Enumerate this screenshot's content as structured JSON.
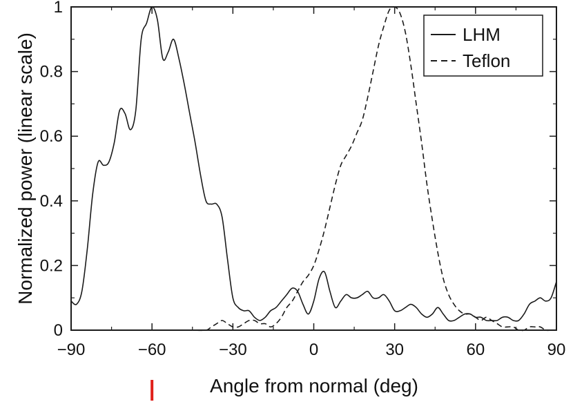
{
  "chart_data": {
    "type": "line",
    "title": "",
    "xlabel": "Angle from normal (deg)",
    "ylabel": "Normalized power (linear scale)",
    "xlim": [
      -90,
      90
    ],
    "ylim": [
      0,
      1.0
    ],
    "xticks": [
      -90,
      -60,
      -30,
      0,
      30,
      60,
      90
    ],
    "xtick_labels": [
      "−90",
      "−60",
      "−30",
      "0",
      "30",
      "60",
      "90"
    ],
    "yticks": [
      0,
      0.2,
      0.4,
      0.6,
      0.8,
      1.0
    ],
    "ytick_labels": [
      "0",
      "0.2",
      "0.4",
      "0.6",
      "0.8",
      "1"
    ],
    "grid": false,
    "legend_position": "top-right",
    "marker_angle": -60,
    "marker_color": "#e0201a",
    "series": [
      {
        "name": "LHM",
        "line_style": "solid",
        "color": "#1a1a1a",
        "x": [
          -90,
          -88,
          -86,
          -84,
          -82,
          -80,
          -78,
          -76,
          -74,
          -72,
          -70,
          -68,
          -66,
          -64,
          -62,
          -60,
          -58,
          -56,
          -54,
          -52,
          -50,
          -48,
          -46,
          -44,
          -42,
          -40,
          -38,
          -36,
          -34,
          -32,
          -30,
          -28,
          -26,
          -24,
          -22,
          -20,
          -18,
          -16,
          -14,
          -12,
          -10,
          -8,
          -6,
          -4,
          -2,
          0,
          2,
          4,
          6,
          8,
          10,
          12,
          14,
          16,
          18,
          20,
          22,
          24,
          26,
          28,
          30,
          32,
          34,
          36,
          38,
          40,
          42,
          44,
          46,
          48,
          50,
          52,
          54,
          56,
          58,
          60,
          62,
          64,
          66,
          68,
          70,
          72,
          74,
          76,
          78,
          80,
          82,
          84,
          86,
          88,
          90
        ],
        "values": [
          0.09,
          0.08,
          0.12,
          0.25,
          0.42,
          0.52,
          0.51,
          0.52,
          0.58,
          0.68,
          0.67,
          0.62,
          0.68,
          0.9,
          0.95,
          1.0,
          0.96,
          0.84,
          0.86,
          0.9,
          0.84,
          0.76,
          0.67,
          0.58,
          0.48,
          0.4,
          0.39,
          0.39,
          0.35,
          0.22,
          0.1,
          0.07,
          0.06,
          0.06,
          0.04,
          0.03,
          0.04,
          0.06,
          0.07,
          0.09,
          0.11,
          0.13,
          0.12,
          0.08,
          0.05,
          0.09,
          0.16,
          0.18,
          0.12,
          0.07,
          0.09,
          0.11,
          0.1,
          0.1,
          0.11,
          0.12,
          0.1,
          0.1,
          0.11,
          0.09,
          0.06,
          0.06,
          0.07,
          0.08,
          0.07,
          0.05,
          0.04,
          0.05,
          0.07,
          0.05,
          0.03,
          0.03,
          0.04,
          0.05,
          0.05,
          0.04,
          0.04,
          0.03,
          0.03,
          0.03,
          0.04,
          0.04,
          0.03,
          0.03,
          0.05,
          0.08,
          0.09,
          0.1,
          0.09,
          0.1,
          0.15
        ]
      },
      {
        "name": "Teflon",
        "line_style": "dashed",
        "color": "#1a1a1a",
        "x": [
          -90,
          -85,
          -80,
          -75,
          -70,
          -65,
          -60,
          -55,
          -50,
          -45,
          -40,
          -38,
          -36,
          -34,
          -32,
          -30,
          -28,
          -26,
          -24,
          -22,
          -20,
          -18,
          -16,
          -14,
          -12,
          -10,
          -8,
          -6,
          -4,
          -2,
          0,
          2,
          4,
          6,
          8,
          10,
          12,
          14,
          16,
          18,
          20,
          22,
          24,
          26,
          28,
          30,
          32,
          34,
          36,
          38,
          40,
          42,
          44,
          46,
          48,
          50,
          52,
          54,
          56,
          58,
          60,
          62,
          64,
          66,
          68,
          70,
          72,
          74,
          76,
          78,
          80,
          82,
          84,
          86,
          88,
          90
        ],
        "values": [
          0.0,
          0.0,
          0.0,
          0.0,
          0.0,
          0.0,
          0.0,
          0.0,
          0.0,
          0.0,
          0.0,
          0.01,
          0.02,
          0.03,
          0.02,
          0.01,
          0.01,
          0.02,
          0.03,
          0.03,
          0.02,
          0.02,
          0.01,
          0.02,
          0.04,
          0.07,
          0.09,
          0.12,
          0.15,
          0.17,
          0.2,
          0.25,
          0.31,
          0.38,
          0.45,
          0.51,
          0.54,
          0.57,
          0.61,
          0.65,
          0.72,
          0.8,
          0.88,
          0.94,
          0.99,
          1.0,
          0.98,
          0.92,
          0.82,
          0.7,
          0.58,
          0.45,
          0.34,
          0.24,
          0.16,
          0.11,
          0.08,
          0.06,
          0.05,
          0.05,
          0.04,
          0.03,
          0.04,
          0.03,
          0.02,
          0.01,
          0.01,
          0.01,
          0.0,
          0.0,
          0.01,
          0.01,
          0.01,
          0.0,
          0.0,
          0.0
        ]
      }
    ]
  }
}
